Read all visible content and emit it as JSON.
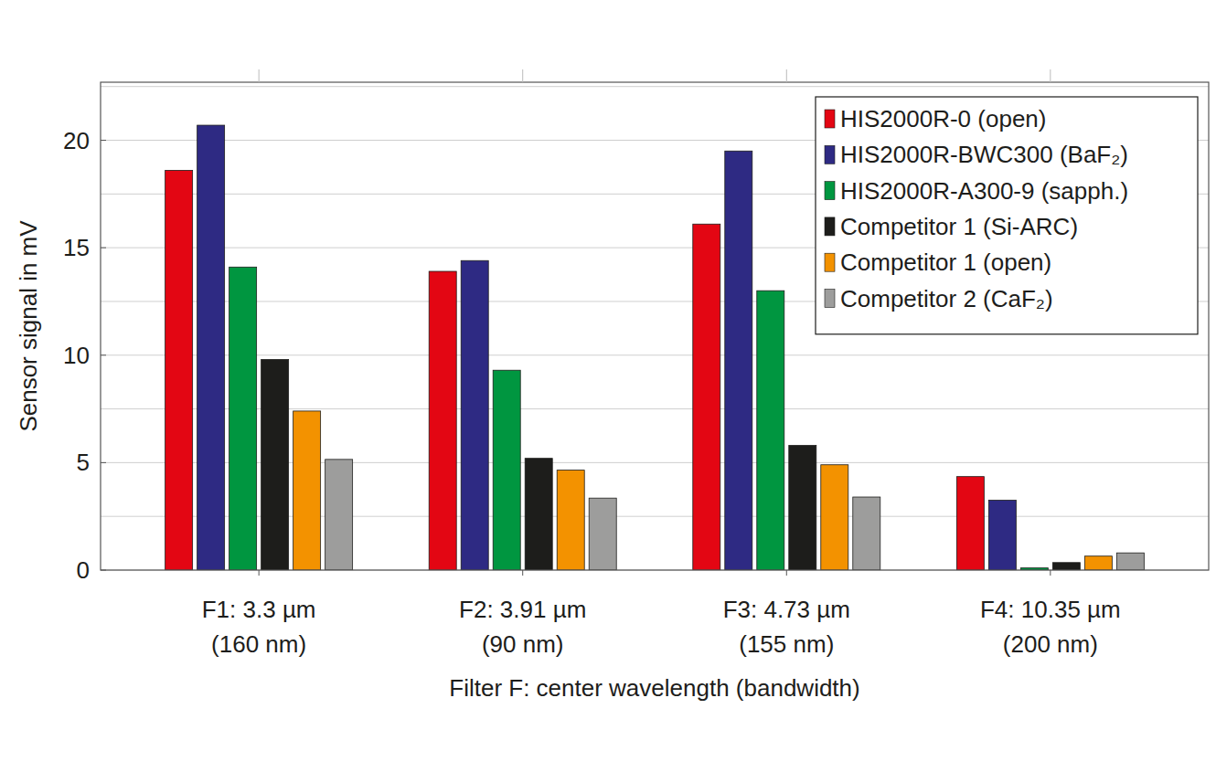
{
  "chart_data": {
    "type": "bar",
    "x_label": "Filter F: center wavelength (bandwidth)",
    "y_label": "Sensor signal in mV",
    "categories": [
      "F1: 3.3 µm\n(160 nm)",
      "F2: 3.91 µm\n(90 nm)",
      "F3: 4.73 µm\n(155 nm)",
      "F4: 10.35 µm\n(200 nm)"
    ],
    "series": [
      {
        "name": "HIS2000R-0 (open)",
        "color": "#e30613",
        "values": [
          18.6,
          13.9,
          16.1,
          4.35
        ]
      },
      {
        "name": "HIS2000R-BWC300 (BaF₂)",
        "color": "#2e2a83",
        "values": [
          20.7,
          14.4,
          19.5,
          3.25
        ]
      },
      {
        "name": "HIS2000R-A300-9 (sapph.)",
        "color": "#009640",
        "values": [
          14.1,
          9.3,
          13.0,
          0.1
        ]
      },
      {
        "name": "Competitor 1 (Si-ARC)",
        "color": "#1d1d1b",
        "values": [
          9.8,
          5.2,
          5.8,
          0.35
        ]
      },
      {
        "name": "Competitor 1 (open)",
        "color": "#f39200",
        "values": [
          7.4,
          4.65,
          4.9,
          0.65
        ]
      },
      {
        "name": "Competitor 2 (CaF₂)",
        "color": "#9d9d9c",
        "values": [
          5.15,
          3.35,
          3.4,
          0.8
        ]
      }
    ],
    "ylim": [
      0,
      22.7
    ],
    "yticks": [
      0,
      5,
      10,
      15,
      20
    ],
    "grid": true,
    "legend": "upper right"
  }
}
